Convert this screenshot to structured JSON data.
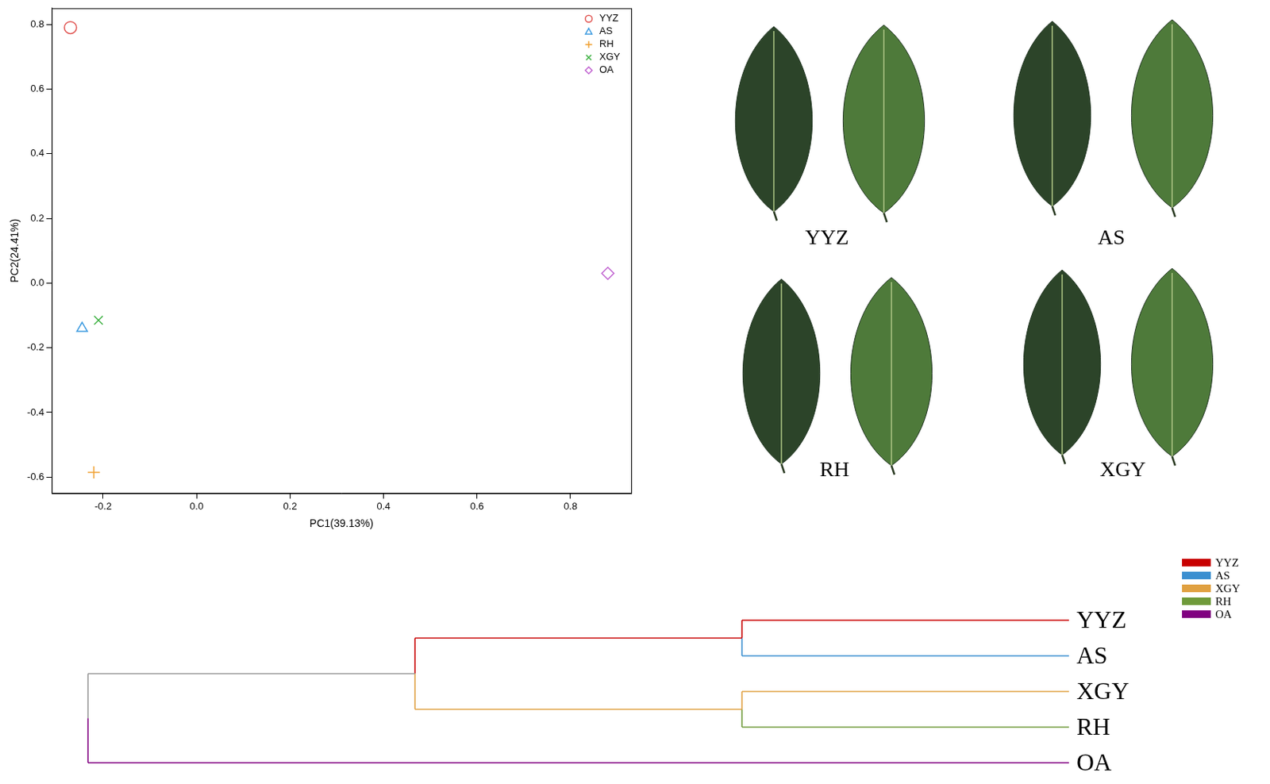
{
  "chart_data": {
    "type": "scatter",
    "x_label": "PC1(39.13%)",
    "y_label": "PC2(24.41%)",
    "xlim": [
      -0.31,
      0.93
    ],
    "ylim": [
      -0.65,
      0.85
    ],
    "xticks": [
      -0.2,
      {
        "value": 0,
        "label": "0.0"
      },
      0.2,
      0.4,
      0.6,
      0.8
    ],
    "yticks": [
      -0.6,
      -0.4,
      -0.2,
      {
        "value": 0,
        "label": "0.0"
      },
      0.2,
      0.4,
      0.6,
      0.8
    ],
    "grid": false,
    "legend": "top-right",
    "series": [
      {
        "name": "YYZ",
        "color": "#e0524f",
        "marker": "circle",
        "x": [
          -0.27
        ],
        "y": [
          0.79
        ]
      },
      {
        "name": "AS",
        "color": "#3d9be0",
        "marker": "triangle",
        "x": [
          -0.245
        ],
        "y": [
          -0.14
        ]
      },
      {
        "name": "RH",
        "color": "#f0a030",
        "marker": "cross",
        "x": [
          -0.22
        ],
        "y": [
          -0.585
        ]
      },
      {
        "name": "XGY",
        "color": "#3cb040",
        "marker": "crossRot",
        "x": [
          -0.21
        ],
        "y": [
          -0.115
        ]
      },
      {
        "name": "OA",
        "color": "#c062d0",
        "marker": "rectRot",
        "x": [
          0.88
        ],
        "y": [
          0.03
        ]
      }
    ]
  },
  "photos": {
    "labels": [
      "YYZ",
      "AS",
      "RH",
      "XGY"
    ]
  },
  "dendrogram": {
    "leaves": [
      {
        "name": "YYZ",
        "color": "#c80000"
      },
      {
        "name": "AS",
        "color": "#3a8fd0"
      },
      {
        "name": "XGY",
        "color": "#e0a040"
      },
      {
        "name": "RH",
        "color": "#6f9a3a"
      },
      {
        "name": "OA",
        "color": "#800080"
      }
    ],
    "tree": {
      "height": 3,
      "children": [
        {
          "height": 2,
          "color": "#999999",
          "children": [
            {
              "height": 1,
              "color": "#c80000",
              "children": [
                {
                  "leaf": "YYZ"
                },
                {
                  "leaf": "AS"
                }
              ]
            },
            {
              "height": 1,
              "color": "#e0a040",
              "children": [
                {
                  "leaf": "XGY"
                },
                {
                  "leaf": "RH"
                }
              ]
            }
          ]
        },
        {
          "leaf": "OA"
        }
      ]
    }
  }
}
